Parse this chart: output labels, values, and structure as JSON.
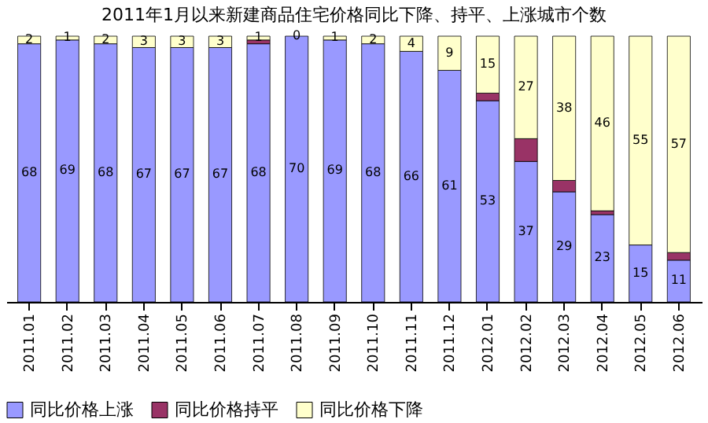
{
  "chart_data": {
    "type": "bar",
    "stacked": true,
    "title": "2011年1月以来新建商品住宅价格同比下降、持平、上涨城市个数",
    "categories": [
      "2011.01",
      "2011.02",
      "2011.03",
      "2011.04",
      "2011.05",
      "2011.06",
      "2011.07",
      "2011.08",
      "2011.09",
      "2011.10",
      "2011.11",
      "2011.12",
      "2012.01",
      "2012.02",
      "2012.03",
      "2012.04",
      "2012.05",
      "2012.06"
    ],
    "series": [
      {
        "name": "同比价格上涨",
        "color": "#9999ff",
        "values": [
          68,
          69,
          68,
          67,
          67,
          67,
          68,
          70,
          69,
          68,
          66,
          61,
          53,
          37,
          29,
          23,
          15,
          11
        ],
        "value_labels": [
          "68",
          "69",
          "68",
          "67",
          "67",
          "67",
          "68",
          "70",
          "69",
          "68",
          "66",
          "61",
          "53",
          "37",
          "29",
          "23",
          "15",
          "11"
        ]
      },
      {
        "name": "同比价格持平",
        "color": "#993366",
        "values": [
          0,
          0,
          0,
          0,
          0,
          0,
          1,
          0,
          0,
          0,
          0,
          0,
          2,
          6,
          3,
          1,
          0,
          2
        ]
      },
      {
        "name": "同比价格下降",
        "color": "#ffffcc",
        "values": [
          2,
          1,
          2,
          3,
          3,
          3,
          1,
          0,
          1,
          2,
          4,
          9,
          15,
          27,
          38,
          46,
          55,
          57
        ],
        "value_labels": [
          "2",
          "1",
          "2",
          "3",
          "3",
          "3",
          "1",
          "0",
          "1",
          "2",
          "4",
          "9",
          "15",
          "27",
          "38",
          "46",
          "55",
          "57"
        ]
      }
    ],
    "legend": "bottom",
    "grid": false,
    "tick_labels": "x"
  }
}
